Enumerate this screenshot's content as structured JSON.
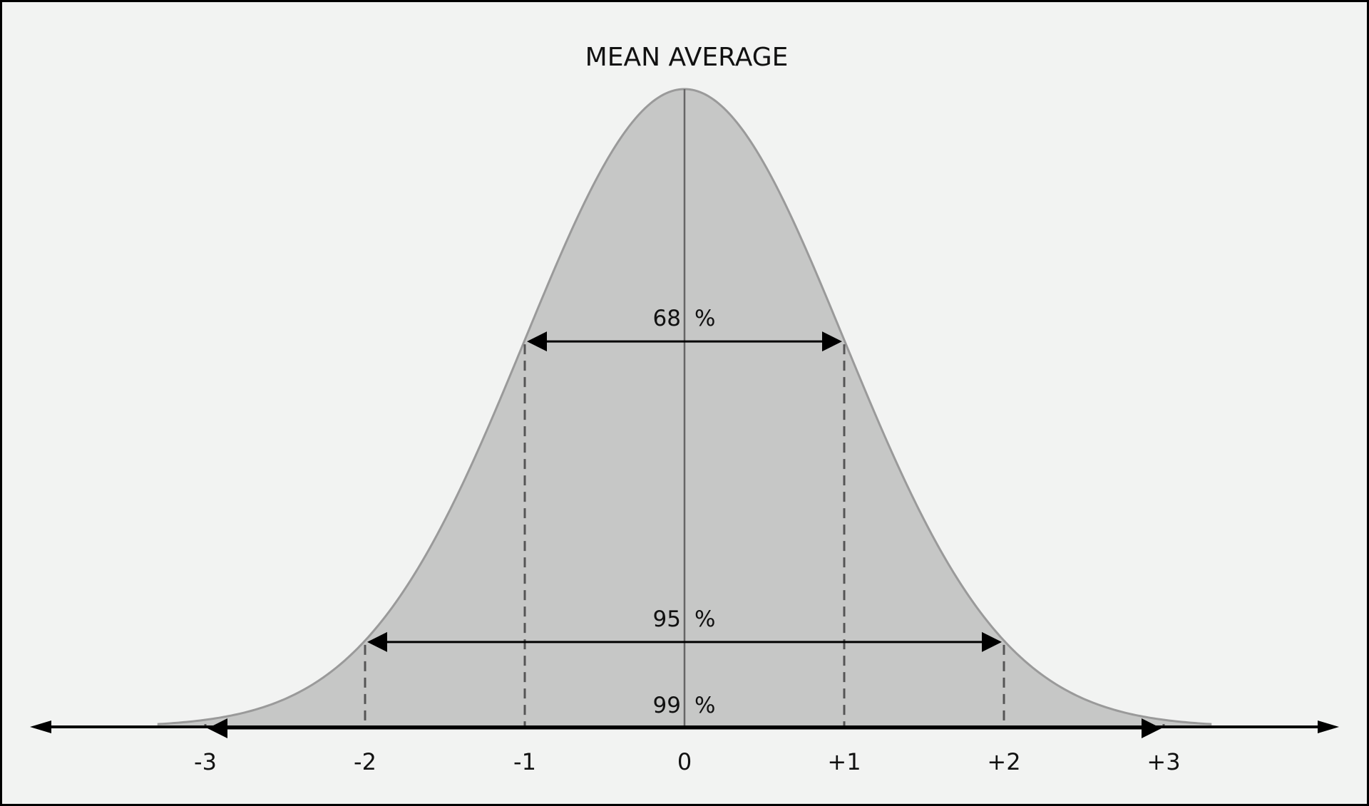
{
  "title": "MEAN AVERAGE",
  "colors": {
    "background": "#f2f3f2",
    "fill": "#c6c7c6",
    "curve": "#9a9a9a",
    "ink": "#000000",
    "dash": "#555555"
  },
  "ticks": [
    {
      "value": -3,
      "label": "-3"
    },
    {
      "value": -2,
      "label": "-2"
    },
    {
      "value": -1,
      "label": "-1"
    },
    {
      "value": 0,
      "label": "0"
    },
    {
      "value": 1,
      "label": "+1"
    },
    {
      "value": 2,
      "label": "+2"
    },
    {
      "value": 3,
      "label": "+3"
    }
  ],
  "intervals": [
    {
      "sigma": 1,
      "label": "68",
      "unit": "%"
    },
    {
      "sigma": 2,
      "label": "95",
      "unit": "%"
    },
    {
      "sigma": 3,
      "label": "99",
      "unit": "%"
    }
  ]
}
